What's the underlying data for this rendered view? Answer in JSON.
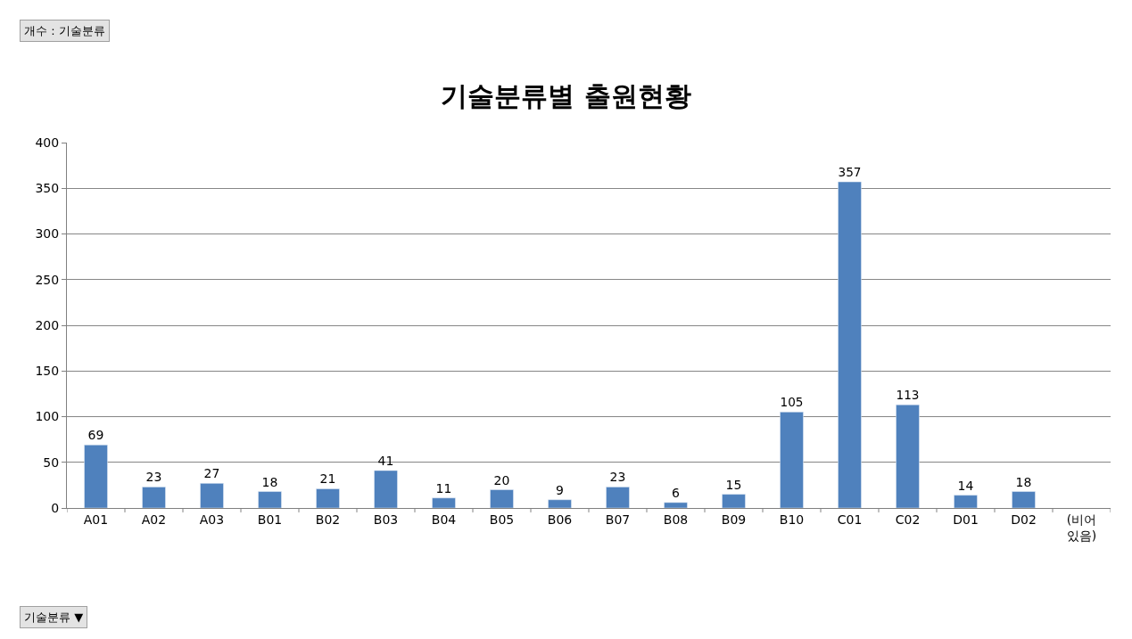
{
  "chart_data": {
    "type": "bar",
    "title": "기술분류별 출원현황",
    "categories": [
      "A01",
      "A02",
      "A03",
      "B01",
      "B02",
      "B03",
      "B04",
      "B05",
      "B06",
      "B07",
      "B08",
      "B09",
      "B10",
      "C01",
      "C02",
      "D01",
      "D02",
      "(비어 있음)"
    ],
    "values": [
      69,
      23,
      27,
      18,
      21,
      41,
      11,
      20,
      9,
      23,
      6,
      15,
      105,
      357,
      113,
      14,
      18,
      null
    ],
    "color": "#4f81bd",
    "ylim": [
      0,
      400
    ],
    "yticks": [
      0,
      50,
      100,
      150,
      200,
      250,
      300,
      350,
      400
    ],
    "grid": "y",
    "legend": false,
    "data_labels": true,
    "annotations": [
      "개수 : 기술분류",
      "기술분류 ▼"
    ]
  }
}
